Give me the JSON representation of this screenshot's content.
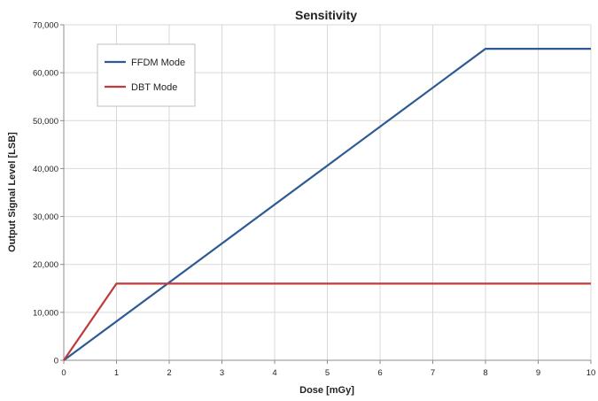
{
  "chart_data": {
    "type": "line",
    "title": "Sensitivity",
    "xlabel": "Dose [mGy]",
    "ylabel": "Output Signal Level [LSB]",
    "xlim": [
      0,
      10
    ],
    "ylim": [
      0,
      70000
    ],
    "xticks": [
      "0",
      "1",
      "2",
      "3",
      "4",
      "5",
      "6",
      "7",
      "8",
      "9",
      "10"
    ],
    "yticks": [
      "0",
      "10,000",
      "20,000",
      "30,000",
      "40,000",
      "50,000",
      "60,000",
      "70,000"
    ],
    "grid": true,
    "legend_position": "top-left",
    "series": [
      {
        "name": "FFDM Mode",
        "color": "#2e5a94",
        "x": [
          0,
          8,
          10
        ],
        "y": [
          0,
          65000,
          65000
        ]
      },
      {
        "name": "DBT Mode",
        "color": "#c0393b",
        "x": [
          0,
          1,
          10
        ],
        "y": [
          0,
          16000,
          16000
        ]
      }
    ]
  }
}
